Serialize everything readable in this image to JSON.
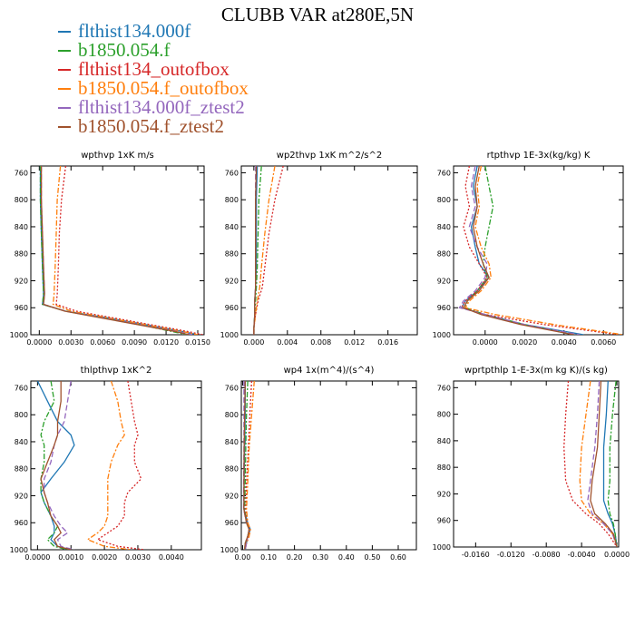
{
  "title": "CLUBB VAR at280E,5N",
  "series": [
    {
      "name": "flthist134.000f",
      "color": "#1f77b4",
      "dash": ""
    },
    {
      "name": "b1850.054.f",
      "color": "#2ca02c",
      "dash": "6,2,2,2"
    },
    {
      "name": "flthist134_outofbox",
      "color": "#d62728",
      "dash": "2,2"
    },
    {
      "name": "b1850.054.f_outofbox",
      "color": "#ff7f0e",
      "dash": "6,2,2,2"
    },
    {
      "name": "flthist134.000f_ztest2",
      "color": "#9467bd",
      "dash": "6,3"
    },
    {
      "name": "b1850.054.f_ztest2",
      "color": "#a0522d",
      "dash": ""
    }
  ],
  "chart_data": [
    {
      "type": "line",
      "title": "wpthvp  1xK m/s",
      "xlim": [
        -0.0008,
        0.0156
      ],
      "ylim": [
        1000,
        750
      ],
      "xticks": [
        0,
        0.003,
        0.006,
        0.009,
        0.012,
        0.015
      ],
      "xtick_labels": [
        "0.0000",
        "0.0030",
        "0.0060",
        "0.0090",
        "0.0120",
        "0.0150"
      ],
      "yticks": [
        760,
        800,
        840,
        880,
        920,
        960,
        1000
      ],
      "y": [
        750,
        800,
        850,
        900,
        940,
        955,
        965,
        975,
        985,
        995,
        1000
      ],
      "series": [
        {
          "name": "flthist134.000f",
          "values": [
            0.0001,
            0.0001,
            0.0002,
            0.0003,
            0.0004,
            0.0003,
            0.0025,
            0.0065,
            0.01,
            0.0135,
            0.015
          ]
        },
        {
          "name": "b1850.054.f",
          "values": [
            0.0001,
            0.0001,
            0.0002,
            0.0003,
            0.0004,
            0.0003,
            0.0025,
            0.006,
            0.0095,
            0.0125,
            0.014
          ]
        },
        {
          "name": "flthist134_outofbox",
          "values": [
            0.0025,
            0.0021,
            0.0019,
            0.0018,
            0.0017,
            0.0016,
            0.0035,
            0.007,
            0.0105,
            0.014,
            0.0155
          ]
        },
        {
          "name": "b1850.054.f_outofbox",
          "values": [
            0.002,
            0.0017,
            0.0016,
            0.0015,
            0.0014,
            0.0013,
            0.003,
            0.0065,
            0.01,
            0.0135,
            0.015
          ]
        },
        {
          "name": "flthist134.000f_ztest2",
          "values": [
            0.0002,
            0.0002,
            0.0003,
            0.0004,
            0.0005,
            0.0004,
            0.0025,
            0.006,
            0.0095,
            0.013,
            0.0145
          ]
        },
        {
          "name": "b1850.054.f_ztest2",
          "values": [
            0.0002,
            0.0002,
            0.0003,
            0.0004,
            0.0005,
            0.0004,
            0.0024,
            0.0058,
            0.0093,
            0.0128,
            0.0142
          ]
        }
      ]
    },
    {
      "type": "line",
      "title": "wp2thvp  1xK m^2/s^2",
      "xlim": [
        -0.0015,
        0.0195
      ],
      "ylim": [
        1000,
        750
      ],
      "xticks": [
        0,
        0.004,
        0.008,
        0.012,
        0.016
      ],
      "xtick_labels": [
        "0.000",
        "0.004",
        "0.008",
        "0.012",
        "0.016"
      ],
      "yticks": [
        760,
        800,
        840,
        880,
        920,
        960,
        1000
      ],
      "y": [
        750,
        800,
        850,
        900,
        930,
        950,
        970,
        990,
        1000
      ],
      "series": [
        {
          "name": "flthist134.000f",
          "values": [
            0.0004,
            0.0003,
            0.0003,
            0.0003,
            0.0002,
            0.0001,
            0.0001,
            0.0,
            0.0
          ]
        },
        {
          "name": "b1850.054.f",
          "values": [
            0.0009,
            0.0006,
            0.0005,
            0.0004,
            0.0003,
            0.0002,
            0.0001,
            0.0,
            0.0
          ]
        },
        {
          "name": "flthist134_outofbox",
          "values": [
            0.0035,
            0.0025,
            0.0018,
            0.0013,
            0.001,
            0.0005,
            0.0002,
            0.0,
            0.0
          ]
        },
        {
          "name": "b1850.054.f_outofbox",
          "values": [
            0.0025,
            0.0018,
            0.0013,
            0.0009,
            0.0007,
            0.0004,
            0.0002,
            0.0,
            0.0
          ]
        },
        {
          "name": "flthist134.000f_ztest2",
          "values": [
            0.0002,
            0.0002,
            0.0002,
            0.0002,
            0.0002,
            0.0001,
            0.0001,
            0.0,
            0.0
          ]
        },
        {
          "name": "b1850.054.f_ztest2",
          "values": [
            0.0003,
            0.0002,
            0.0002,
            0.0002,
            0.0002,
            0.0001,
            0.0001,
            0.0,
            0.0
          ]
        }
      ]
    },
    {
      "type": "line",
      "title": "rtpthvp  1E-3x(kg/kg) K",
      "xlim": [
        -0.0016,
        0.007
      ],
      "ylim": [
        1000,
        750
      ],
      "xticks": [
        0,
        0.002,
        0.004,
        0.006
      ],
      "xtick_labels": [
        "0.0000",
        "0.0020",
        "0.0040",
        "0.0060"
      ],
      "yticks": [
        760,
        800,
        840,
        880,
        920,
        960,
        1000
      ],
      "y": [
        750,
        780,
        810,
        840,
        870,
        895,
        915,
        935,
        950,
        960,
        970,
        985,
        1000
      ],
      "series": [
        {
          "name": "flthist134.000f",
          "values": [
            -0.0004,
            -0.0006,
            -0.0004,
            -0.0007,
            -0.0005,
            -0.0003,
            0.0002,
            -0.0004,
            -0.001,
            -0.0012,
            0.0,
            0.002,
            0.005
          ]
        },
        {
          "name": "b1850.054.f",
          "values": [
            0.0,
            0.0002,
            0.0004,
            0.0002,
            0.0,
            -0.0001,
            0.0001,
            -0.0004,
            -0.0009,
            -0.001,
            0.0,
            0.002,
            0.0045
          ]
        },
        {
          "name": "flthist134_outofbox",
          "values": [
            -0.0008,
            -0.001,
            -0.0008,
            -0.0011,
            -0.0008,
            -0.0003,
            0.0001,
            -0.0004,
            -0.001,
            -0.0012,
            0.0,
            0.003,
            0.0068
          ]
        },
        {
          "name": "b1850.054.f_outofbox",
          "values": [
            -0.0002,
            -0.0004,
            -0.0003,
            -0.0005,
            -0.0002,
            0.0002,
            0.0003,
            -0.0002,
            -0.0008,
            -0.001,
            0.0005,
            0.0035,
            0.007
          ]
        },
        {
          "name": "flthist134.000f_ztest2",
          "values": [
            -0.0005,
            -0.0007,
            -0.0005,
            -0.0008,
            -0.0004,
            0.0001,
            0.0,
            -0.0005,
            -0.0011,
            -0.0013,
            0.0,
            0.002,
            0.0048
          ]
        },
        {
          "name": "b1850.054.f_ztest2",
          "values": [
            -0.0003,
            -0.0005,
            -0.0004,
            -0.0006,
            -0.0004,
            -0.0001,
            0.0002,
            -0.0003,
            -0.0009,
            -0.0011,
            -0.0002,
            0.0018,
            0.0045
          ]
        }
      ]
    },
    {
      "type": "line",
      "title": "thlpthvp   1xK^2",
      "xlim": [
        -0.0002,
        0.0049
      ],
      "ylim": [
        1000,
        750
      ],
      "xticks": [
        0,
        0.001,
        0.002,
        0.003,
        0.004
      ],
      "xtick_labels": [
        "0.0000",
        "0.0010",
        "0.0020",
        "0.0030",
        "0.0040"
      ],
      "yticks": [
        760,
        800,
        840,
        880,
        920,
        960,
        1000
      ],
      "y": [
        750,
        780,
        810,
        830,
        845,
        870,
        895,
        915,
        930,
        950,
        965,
        975,
        985,
        995,
        1000
      ],
      "series": [
        {
          "name": "flthist134.000f",
          "values": [
            0.0,
            0.0003,
            0.0006,
            0.001,
            0.0011,
            0.0008,
            0.0004,
            0.0001,
            0.0002,
            0.0004,
            0.0005,
            0.0005,
            0.0004,
            0.0006,
            0.001
          ]
        },
        {
          "name": "b1850.054.f",
          "values": [
            0.0004,
            0.0005,
            0.0002,
            0.0001,
            0.0002,
            0.0002,
            0.0001,
            0.0001,
            0.0002,
            0.0004,
            0.0006,
            0.0005,
            0.0003,
            0.0005,
            0.0009
          ]
        },
        {
          "name": "flthist134_outofbox",
          "values": [
            0.0027,
            0.0028,
            0.0029,
            0.003,
            0.0029,
            0.0029,
            0.0031,
            0.0027,
            0.0026,
            0.0026,
            0.0024,
            0.0021,
            0.0018,
            0.0024,
            0.0032
          ]
        },
        {
          "name": "b1850.054.f_outofbox",
          "values": [
            0.0022,
            0.0024,
            0.0025,
            0.0026,
            0.0024,
            0.0022,
            0.0021,
            0.0021,
            0.0021,
            0.0021,
            0.002,
            0.0018,
            0.0015,
            0.002,
            0.0028
          ]
        },
        {
          "name": "flthist134.000f_ztest2",
          "values": [
            0.001,
            0.0009,
            0.0008,
            0.0006,
            0.0005,
            0.0004,
            0.0002,
            0.0002,
            0.0003,
            0.0005,
            0.0007,
            0.0009,
            0.0006,
            0.0007,
            0.0011
          ]
        },
        {
          "name": "b1850.054.f_ztest2",
          "values": [
            0.0007,
            0.0007,
            0.0006,
            0.0006,
            0.0005,
            0.0003,
            0.0001,
            0.0002,
            0.0003,
            0.0004,
            0.0006,
            0.0007,
            0.0005,
            0.0006,
            0.001
          ]
        }
      ]
    },
    {
      "type": "line",
      "title": "wp4   1x(m^4)/(s^4)",
      "xlim": [
        -0.005,
        0.67
      ],
      "ylim": [
        1000,
        750
      ],
      "xticks": [
        0,
        0.1,
        0.2,
        0.3,
        0.4,
        0.5,
        0.6
      ],
      "xtick_labels": [
        "0.00",
        "0.10",
        "0.20",
        "0.30",
        "0.40",
        "0.50",
        "0.60"
      ],
      "yticks": [
        760,
        800,
        840,
        880,
        920,
        960,
        1000
      ],
      "y": [
        750,
        800,
        850,
        900,
        940,
        960,
        970,
        980,
        990,
        1000
      ],
      "series": [
        {
          "name": "flthist134.000f",
          "values": [
            0.01,
            0.01,
            0.008,
            0.006,
            0.005,
            0.02,
            0.03,
            0.02,
            0.015,
            0.01
          ]
        },
        {
          "name": "b1850.054.f",
          "values": [
            0.02,
            0.015,
            0.012,
            0.01,
            0.008,
            0.015,
            0.025,
            0.02,
            0.01,
            0.008
          ]
        },
        {
          "name": "flthist134_outofbox",
          "values": [
            0.035,
            0.028,
            0.022,
            0.015,
            0.012,
            0.02,
            0.03,
            0.025,
            0.015,
            0.01
          ]
        },
        {
          "name": "b1850.054.f_outofbox",
          "values": [
            0.045,
            0.035,
            0.025,
            0.02,
            0.015,
            0.02,
            0.03,
            0.025,
            0.015,
            0.01
          ]
        },
        {
          "name": "flthist134.000f_ztest2",
          "values": [
            0.005,
            0.005,
            0.005,
            0.004,
            0.004,
            0.015,
            0.025,
            0.02,
            0.015,
            0.01
          ]
        },
        {
          "name": "b1850.054.f_ztest2",
          "values": [
            0.01,
            0.008,
            0.006,
            0.005,
            0.005,
            0.015,
            0.025,
            0.02,
            0.01,
            0.008
          ]
        }
      ]
    },
    {
      "type": "line",
      "title": "wprtpthlp   1-E-3x(m kg K)/(s kg)",
      "xlim": [
        -0.0185,
        0.0002
      ],
      "ylim": [
        1000,
        750
      ],
      "xticks": [
        -0.016,
        -0.012,
        -0.008,
        -0.004,
        0
      ],
      "xtick_labels": [
        "-0.0160",
        "-0.0120",
        "-0.0080",
        "-0.0040",
        "0.0000"
      ],
      "yticks": [
        760,
        800,
        840,
        880,
        920,
        960,
        1000
      ],
      "y": [
        750,
        800,
        850,
        900,
        930,
        950,
        965,
        980,
        1000
      ],
      "series": [
        {
          "name": "flthist134.000f",
          "values": [
            -0.001,
            -0.0012,
            -0.0015,
            -0.0015,
            -0.0015,
            -0.001,
            -0.0005,
            -0.0002,
            0.0
          ]
        },
        {
          "name": "b1850.054.f",
          "values": [
            -0.0001,
            -0.0005,
            -0.0008,
            -0.0008,
            -0.001,
            -0.0008,
            -0.0004,
            -0.0002,
            0.0
          ]
        },
        {
          "name": "flthist134_outofbox",
          "values": [
            -0.0055,
            -0.0058,
            -0.006,
            -0.0058,
            -0.005,
            -0.0035,
            -0.002,
            -0.001,
            0.0
          ]
        },
        {
          "name": "b1850.054.f_outofbox",
          "values": [
            -0.003,
            -0.0035,
            -0.004,
            -0.0042,
            -0.004,
            -0.003,
            -0.0015,
            -0.0005,
            0.0
          ]
        },
        {
          "name": "flthist134.000f_ztest2",
          "values": [
            -0.002,
            -0.0022,
            -0.0025,
            -0.003,
            -0.0033,
            -0.0028,
            -0.0015,
            -0.0005,
            0.0
          ]
        },
        {
          "name": "b1850.054.f_ztest2",
          "values": [
            -0.0018,
            -0.002,
            -0.0022,
            -0.0028,
            -0.003,
            -0.0025,
            -0.0013,
            -0.0004,
            0.0
          ]
        }
      ]
    }
  ]
}
